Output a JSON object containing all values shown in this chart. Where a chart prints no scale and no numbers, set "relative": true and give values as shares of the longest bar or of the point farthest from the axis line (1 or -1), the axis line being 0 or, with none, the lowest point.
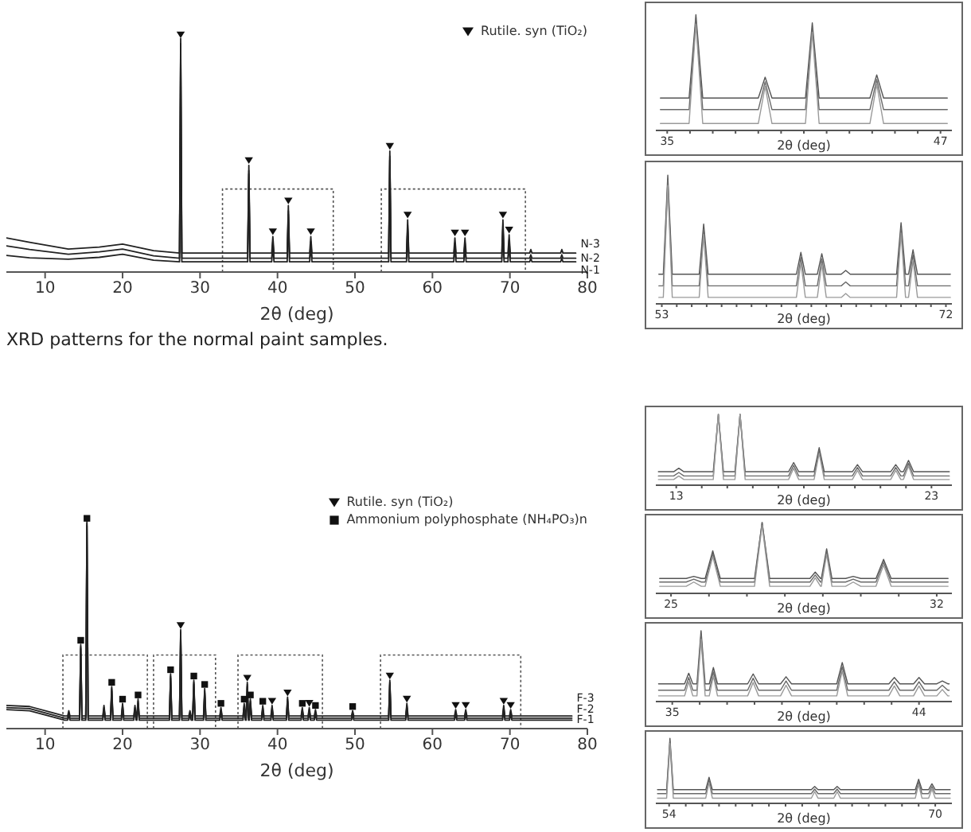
{
  "chart_data": [
    {
      "type": "line",
      "relative": true,
      "xlabel": "2θ (deg)",
      "xlim": [
        5,
        80
      ],
      "xticks": [
        10,
        20,
        30,
        40,
        50,
        60,
        70,
        80
      ],
      "legend": "top right",
      "annotations": [
        "XRD patterns for the normal paint samples."
      ],
      "x": [
        5,
        8,
        13,
        17,
        20,
        24,
        27.35,
        27.5,
        27.65,
        36.15,
        36.3,
        36.45,
        39.25,
        39.4,
        39.55,
        41.25,
        41.4,
        41.55,
        44.15,
        44.3,
        44.45,
        54.35,
        54.5,
        54.65,
        56.65,
        56.8,
        56.95,
        62.75,
        62.9,
        63.05,
        64.05,
        64.2,
        64.35,
        68.95,
        69.1,
        69.25,
        69.75,
        69.9,
        70.05,
        72.55,
        72.7,
        72.85,
        76.55,
        76.7,
        76.85,
        78.5
      ],
      "series": [
        {
          "name": "N-3",
          "color": "#222222",
          "values": [
            0.144,
            0.125,
            0.097,
            0.105,
            0.118,
            0.09,
            0.08,
            0.985,
            0.08,
            0.08,
            0.45,
            0.08,
            0.08,
            0.15,
            0.08,
            0.08,
            0.28,
            0.08,
            0.08,
            0.15,
            0.08,
            0.08,
            0.51,
            0.08,
            0.08,
            0.22,
            0.08,
            0.08,
            0.144,
            0.08,
            0.08,
            0.144,
            0.08,
            0.08,
            0.22,
            0.08,
            0.08,
            0.157,
            0.08,
            0.08,
            0.095,
            0.08,
            0.08,
            0.095,
            0.08,
            0.08
          ]
        },
        {
          "name": "N-2",
          "color": "#222222",
          "values": [
            0.11,
            0.095,
            0.075,
            0.085,
            0.097,
            0.068,
            0.058,
            0.963,
            0.058,
            0.058,
            0.428,
            0.058,
            0.058,
            0.128,
            0.058,
            0.058,
            0.258,
            0.058,
            0.058,
            0.128,
            0.058,
            0.058,
            0.488,
            0.058,
            0.058,
            0.198,
            0.058,
            0.058,
            0.122,
            0.058,
            0.058,
            0.122,
            0.058,
            0.058,
            0.198,
            0.058,
            0.058,
            0.135,
            0.058,
            0.058,
            0.073,
            0.058,
            0.058,
            0.073,
            0.058,
            0.058
          ]
        },
        {
          "name": "N-1",
          "color": "#222222",
          "values": [
            0.07,
            0.06,
            0.054,
            0.062,
            0.075,
            0.05,
            0.043,
            0.948,
            0.043,
            0.043,
            0.413,
            0.043,
            0.043,
            0.113,
            0.043,
            0.043,
            0.243,
            0.043,
            0.043,
            0.113,
            0.043,
            0.043,
            0.473,
            0.043,
            0.043,
            0.183,
            0.043,
            0.043,
            0.107,
            0.043,
            0.043,
            0.107,
            0.043,
            0.043,
            0.183,
            0.043,
            0.043,
            0.12,
            0.043,
            0.043,
            0.058,
            0.043,
            0.043,
            0.058,
            0.043,
            0.043
          ]
        },
        {
          "type": "scatter",
          "name": "Rutile. syn (TiO₂)",
          "color": "#111111",
          "marker": "triangle",
          "x": [
            27.5,
            36.3,
            39.4,
            41.4,
            44.3,
            54.5,
            56.8,
            62.9,
            64.2,
            69.1,
            69.9
          ],
          "values": [
            1.0,
            0.47,
            0.17,
            0.3,
            0.17,
            0.53,
            0.24,
            0.165,
            0.165,
            0.24,
            0.177
          ]
        }
      ]
    },
    {
      "type": "line",
      "relative": true,
      "xlabel": "2θ (deg)",
      "xlim": [
        34.5,
        47.5
      ],
      "xticks": [
        35,
        {
          "value": 36,
          "label": null
        },
        {
          "value": 37,
          "label": null
        },
        {
          "value": 38,
          "label": null
        },
        {
          "value": 39,
          "label": null
        },
        {
          "value": 40,
          "label": null
        },
        {
          "value": 41,
          "label": null
        },
        {
          "value": 42,
          "label": null
        },
        {
          "value": 43,
          "label": null
        },
        {
          "value": 44,
          "label": null
        },
        {
          "value": 45,
          "label": null
        },
        {
          "value": 46,
          "label": null
        },
        47
      ],
      "x": [
        34.7,
        35.96,
        36.26,
        36.56,
        39.0,
        39.3,
        39.6,
        41.07,
        41.37,
        41.67,
        43.9,
        44.2,
        44.5,
        47.3
      ],
      "series": [
        {
          "color": "#555555",
          "values": [
            0.28,
            0.28,
            1.0,
            0.28,
            0.28,
            0.46,
            0.28,
            0.28,
            0.93,
            0.28,
            0.28,
            0.48,
            0.28,
            0.28
          ]
        },
        {
          "color": "#6a6a6a",
          "values": [
            0.18,
            0.18,
            0.96,
            0.18,
            0.18,
            0.42,
            0.18,
            0.18,
            0.89,
            0.18,
            0.18,
            0.44,
            0.18,
            0.18
          ]
        },
        {
          "color": "#9a9a9a",
          "values": [
            0.06,
            0.06,
            0.92,
            0.06,
            0.06,
            0.38,
            0.06,
            0.06,
            0.85,
            0.06,
            0.06,
            0.4,
            0.06,
            0.06
          ]
        }
      ]
    },
    {
      "type": "line",
      "relative": true,
      "xlabel": "2θ (deg)",
      "xlim": [
        52.6,
        72.4
      ],
      "xticks": [
        53,
        {
          "value": 54,
          "label": null
        },
        {
          "value": 55,
          "label": null
        },
        {
          "value": 56,
          "label": null
        },
        {
          "value": 57,
          "label": null
        },
        {
          "value": 58,
          "label": null
        },
        {
          "value": 59,
          "label": null
        },
        {
          "value": 60,
          "label": null
        },
        {
          "value": 61,
          "label": null
        },
        {
          "value": 62,
          "label": null
        },
        {
          "value": 63,
          "label": null
        },
        {
          "value": 64,
          "label": null
        },
        {
          "value": 65,
          "label": null
        },
        {
          "value": 66,
          "label": null
        },
        {
          "value": 67,
          "label": null
        },
        {
          "value": 68,
          "label": null
        },
        {
          "value": 69,
          "label": null
        },
        {
          "value": 70,
          "label": null
        },
        {
          "value": 71,
          "label": null
        },
        72
      ],
      "x": [
        52.8,
        53.1,
        53.4,
        53.7,
        55.5,
        55.8,
        56.1,
        62.0,
        62.3,
        62.6,
        63.4,
        63.7,
        64.0,
        65.0,
        65.3,
        65.6,
        68.7,
        69.0,
        69.3,
        69.5,
        69.8,
        70.1,
        72.3
      ],
      "series": [
        {
          "color": "#555555",
          "values": [
            0.23,
            0.23,
            1.0,
            0.23,
            0.23,
            0.62,
            0.23,
            0.23,
            0.4,
            0.23,
            0.23,
            0.39,
            0.23,
            0.23,
            0.26,
            0.23,
            0.23,
            0.63,
            0.23,
            0.23,
            0.42,
            0.23,
            0.23
          ]
        },
        {
          "color": "#6a6a6a",
          "values": [
            0.14,
            0.14,
            0.96,
            0.14,
            0.14,
            0.58,
            0.14,
            0.14,
            0.36,
            0.14,
            0.14,
            0.35,
            0.14,
            0.14,
            0.17,
            0.14,
            0.14,
            0.59,
            0.14,
            0.14,
            0.38,
            0.14,
            0.14
          ]
        },
        {
          "color": "#9a9a9a",
          "values": [
            0.05,
            0.05,
            0.92,
            0.05,
            0.05,
            0.54,
            0.05,
            0.05,
            0.32,
            0.05,
            0.05,
            0.31,
            0.05,
            0.05,
            0.08,
            0.05,
            0.05,
            0.55,
            0.05,
            0.05,
            0.34,
            0.05,
            0.05
          ]
        }
      ]
    },
    {
      "type": "line",
      "relative": true,
      "xlabel": "2θ (deg)",
      "xlim": [
        5,
        80
      ],
      "xticks": [
        10,
        20,
        30,
        40,
        50,
        60,
        70,
        80
      ],
      "legend": "top right",
      "x": [
        5,
        8,
        11,
        12.5,
        12.91,
        13.06,
        13.21,
        14.45,
        14.6,
        14.75,
        15.25,
        15.4,
        15.55,
        17.45,
        17.6,
        17.75,
        18.45,
        18.6,
        18.75,
        19.85,
        20.0,
        20.15,
        21.45,
        21.6,
        21.75,
        21.85,
        22.0,
        22.15,
        26.05,
        26.2,
        26.35,
        27.35,
        27.5,
        27.65,
        28.55,
        28.7,
        28.85,
        29.05,
        29.2,
        29.35,
        30.45,
        30.6,
        30.75,
        32.55,
        32.7,
        32.85,
        35.55,
        35.7,
        35.85,
        35.95,
        36.1,
        36.25,
        36.35,
        36.5,
        36.65,
        37.95,
        38.1,
        38.25,
        39.15,
        39.3,
        39.45,
        41.15,
        41.3,
        41.45,
        43.05,
        43.2,
        43.35,
        43.95,
        44.1,
        44.25,
        44.75,
        44.9,
        45.05,
        49.55,
        49.7,
        49.85,
        54.35,
        54.5,
        54.65,
        56.55,
        56.7,
        56.85,
        62.85,
        63.0,
        63.15,
        64.15,
        64.3,
        64.45,
        69.05,
        69.2,
        69.35,
        69.95,
        70.1,
        70.25,
        78
      ],
      "series": [
        {
          "name": "F-3",
          "color": "#222222",
          "values": [
            0.11,
            0.105,
            0.075,
            0.06,
            0.06,
            0.085,
            0.06,
            0.06,
            0.4,
            0.06,
            0.06,
            0.985,
            0.06,
            0.06,
            0.11,
            0.06,
            0.06,
            0.2,
            0.06,
            0.06,
            0.12,
            0.06,
            0.06,
            0.11,
            0.06,
            0.06,
            0.14,
            0.06,
            0.06,
            0.26,
            0.06,
            0.06,
            0.47,
            0.06,
            0.06,
            0.085,
            0.06,
            0.06,
            0.23,
            0.06,
            0.06,
            0.19,
            0.06,
            0.06,
            0.1,
            0.06,
            0.06,
            0.12,
            0.06,
            0.06,
            0.22,
            0.06,
            0.06,
            0.14,
            0.06,
            0.06,
            0.11,
            0.06,
            0.06,
            0.11,
            0.06,
            0.06,
            0.15,
            0.06,
            0.06,
            0.1,
            0.06,
            0.06,
            0.1,
            0.06,
            0.06,
            0.09,
            0.06,
            0.06,
            0.085,
            0.06,
            0.06,
            0.23,
            0.06,
            0.06,
            0.12,
            0.06,
            0.06,
            0.09,
            0.06,
            0.06,
            0.09,
            0.06,
            0.06,
            0.11,
            0.06,
            0.06,
            0.09,
            0.06,
            0.06
          ]
        },
        {
          "name": "F-2",
          "color": "#222222",
          "values": [
            0.1,
            0.095,
            0.065,
            0.05,
            0.05,
            0.075,
            0.05,
            0.05,
            0.39,
            0.05,
            0.05,
            0.975,
            0.05,
            0.05,
            0.1,
            0.05,
            0.05,
            0.19,
            0.05,
            0.05,
            0.11,
            0.05,
            0.05,
            0.1,
            0.05,
            0.05,
            0.13,
            0.05,
            0.05,
            0.25,
            0.05,
            0.05,
            0.46,
            0.05,
            0.05,
            0.075,
            0.05,
            0.05,
            0.22,
            0.05,
            0.05,
            0.18,
            0.05,
            0.05,
            0.09,
            0.05,
            0.05,
            0.11,
            0.05,
            0.05,
            0.21,
            0.05,
            0.05,
            0.13,
            0.05,
            0.05,
            0.1,
            0.05,
            0.05,
            0.1,
            0.05,
            0.05,
            0.14,
            0.05,
            0.05,
            0.09,
            0.05,
            0.05,
            0.09,
            0.05,
            0.05,
            0.08,
            0.05,
            0.05,
            0.075,
            0.05,
            0.05,
            0.22,
            0.05,
            0.05,
            0.11,
            0.05,
            0.05,
            0.08,
            0.05,
            0.05,
            0.08,
            0.05,
            0.05,
            0.1,
            0.05,
            0.05,
            0.08,
            0.05,
            0.05
          ]
        },
        {
          "name": "F-1",
          "color": "#222222",
          "values": [
            0.09,
            0.085,
            0.055,
            0.04,
            0.04,
            0.065,
            0.04,
            0.04,
            0.38,
            0.04,
            0.04,
            0.965,
            0.04,
            0.04,
            0.09,
            0.04,
            0.04,
            0.18,
            0.04,
            0.04,
            0.1,
            0.04,
            0.04,
            0.09,
            0.04,
            0.04,
            0.12,
            0.04,
            0.04,
            0.24,
            0.04,
            0.04,
            0.45,
            0.04,
            0.04,
            0.065,
            0.04,
            0.04,
            0.21,
            0.04,
            0.04,
            0.17,
            0.04,
            0.04,
            0.08,
            0.04,
            0.04,
            0.1,
            0.04,
            0.04,
            0.2,
            0.04,
            0.04,
            0.12,
            0.04,
            0.04,
            0.09,
            0.04,
            0.04,
            0.09,
            0.04,
            0.04,
            0.13,
            0.04,
            0.04,
            0.08,
            0.04,
            0.04,
            0.08,
            0.04,
            0.04,
            0.07,
            0.04,
            0.04,
            0.065,
            0.04,
            0.04,
            0.21,
            0.04,
            0.04,
            0.1,
            0.04,
            0.04,
            0.07,
            0.04,
            0.04,
            0.07,
            0.04,
            0.04,
            0.09,
            0.04,
            0.04,
            0.07,
            0.04,
            0.04
          ]
        },
        {
          "type": "scatter",
          "name": "Rutile. syn (TiO₂)",
          "color": "#111111",
          "marker": "triangle",
          "x": [
            27.5,
            36.1,
            39.3,
            41.3,
            44.1,
            54.5,
            56.7,
            63.0,
            64.3,
            69.2,
            70.1
          ],
          "values": [
            0.49,
            0.24,
            0.13,
            0.17,
            0.12,
            0.25,
            0.14,
            0.11,
            0.11,
            0.13,
            0.11
          ]
        },
        {
          "type": "scatter",
          "name": "Ammonium polyphosphate (NH₄PO₃)n",
          "color": "#111111",
          "marker": "square",
          "x": [
            14.6,
            15.4,
            18.6,
            20.0,
            22.0,
            26.2,
            29.2,
            30.6,
            32.7,
            35.7,
            36.5,
            38.1,
            43.2,
            44.9,
            49.7
          ],
          "values": [
            0.42,
            1.0,
            0.22,
            0.14,
            0.16,
            0.28,
            0.25,
            0.21,
            0.12,
            0.14,
            0.16,
            0.13,
            0.12,
            0.11,
            0.105
          ]
        }
      ]
    },
    {
      "type": "line",
      "relative": true,
      "xlabel": "2θ (deg)",
      "xlim": [
        12.2,
        23.8
      ],
      "xticks": [
        13,
        {
          "value": 14,
          "label": null
        },
        {
          "value": 15,
          "label": null
        },
        {
          "value": 16,
          "label": null
        },
        {
          "value": 17,
          "label": null
        },
        {
          "value": 18,
          "label": null
        },
        {
          "value": 19,
          "label": null
        },
        {
          "value": 20,
          "label": null
        },
        {
          "value": 21,
          "label": null
        },
        {
          "value": 22,
          "label": null
        },
        23
      ],
      "x": [
        12.3,
        12.9,
        13.1,
        13.3,
        14.45,
        14.65,
        14.85,
        15.3,
        15.5,
        15.7,
        17.4,
        17.6,
        17.8,
        18.4,
        18.6,
        18.8,
        19.9,
        20.1,
        20.3,
        21.4,
        21.6,
        21.8,
        21.9,
        22.1,
        22.3,
        23.7
      ],
      "series": [
        {
          "color": "#555555",
          "values": [
            0.19,
            0.19,
            0.24,
            0.19,
            0.19,
            1.0,
            0.19,
            0.19,
            1.0,
            0.19,
            0.19,
            0.32,
            0.19,
            0.19,
            0.53,
            0.19,
            0.19,
            0.29,
            0.19,
            0.19,
            0.29,
            0.19,
            0.19,
            0.35,
            0.19,
            0.19
          ]
        },
        {
          "color": "#6a6a6a",
          "values": [
            0.13,
            0.13,
            0.18,
            0.13,
            0.13,
            1.0,
            0.13,
            0.13,
            1.0,
            0.13,
            0.13,
            0.28,
            0.13,
            0.13,
            0.49,
            0.13,
            0.13,
            0.25,
            0.13,
            0.13,
            0.25,
            0.13,
            0.13,
            0.31,
            0.13,
            0.13
          ]
        },
        {
          "color": "#9a9a9a",
          "values": [
            0.08,
            0.08,
            0.13,
            0.08,
            0.08,
            1.0,
            0.08,
            0.08,
            1.0,
            0.08,
            0.08,
            0.24,
            0.08,
            0.08,
            0.45,
            0.08,
            0.08,
            0.21,
            0.08,
            0.08,
            0.21,
            0.08,
            0.08,
            0.27,
            0.08,
            0.08
          ]
        }
      ]
    },
    {
      "type": "line",
      "relative": true,
      "xlabel": "2θ (deg)",
      "xlim": [
        24.6,
        32.4
      ],
      "xticks": [
        25,
        {
          "value": 26,
          "label": null
        },
        {
          "value": 27,
          "label": null
        },
        {
          "value": 28,
          "label": null
        },
        {
          "value": 29,
          "label": null
        },
        {
          "value": 30,
          "label": null
        },
        {
          "value": 31,
          "label": null
        },
        32
      ],
      "x": [
        24.7,
        25.4,
        25.6,
        25.8,
        25.9,
        26.1,
        26.3,
        27.2,
        27.4,
        27.6,
        28.66,
        28.8,
        28.94,
        28.96,
        29.1,
        29.24,
        29.6,
        29.8,
        30.0,
        30.4,
        30.6,
        30.8,
        32.3
      ],
      "series": [
        {
          "color": "#555555",
          "values": [
            0.21,
            0.21,
            0.24,
            0.21,
            0.21,
            0.6,
            0.21,
            0.21,
            1.0,
            0.21,
            0.21,
            0.3,
            0.21,
            0.21,
            0.63,
            0.21,
            0.21,
            0.24,
            0.21,
            0.21,
            0.48,
            0.21,
            0.21
          ]
        },
        {
          "color": "#6a6a6a",
          "values": [
            0.16,
            0.16,
            0.2,
            0.16,
            0.16,
            0.56,
            0.16,
            0.16,
            1.0,
            0.16,
            0.16,
            0.26,
            0.16,
            0.16,
            0.59,
            0.16,
            0.16,
            0.2,
            0.16,
            0.16,
            0.44,
            0.16,
            0.16
          ]
        },
        {
          "color": "#9a9a9a",
          "values": [
            0.1,
            0.1,
            0.16,
            0.1,
            0.1,
            0.52,
            0.1,
            0.1,
            0.96,
            0.1,
            0.1,
            0.22,
            0.1,
            0.1,
            0.55,
            0.1,
            0.1,
            0.16,
            0.1,
            0.1,
            0.4,
            0.1,
            0.1
          ]
        }
      ]
    },
    {
      "type": "line",
      "relative": true,
      "xlabel": "2θ (deg)",
      "xlim": [
        34.4,
        45.2
      ],
      "xticks": [
        35,
        {
          "value": 36,
          "label": null
        },
        {
          "value": 37,
          "label": null
        },
        {
          "value": 38,
          "label": null
        },
        {
          "value": 39,
          "label": null
        },
        {
          "value": 40,
          "label": null
        },
        {
          "value": 41,
          "label": null
        },
        {
          "value": 42,
          "label": null
        },
        {
          "value": 43,
          "label": null
        },
        44
      ],
      "x": [
        34.5,
        35.45,
        35.6,
        35.75,
        35.9,
        36.05,
        36.2,
        36.35,
        36.5,
        36.65,
        37.75,
        37.95,
        38.15,
        38.95,
        39.15,
        39.35,
        41.0,
        41.2,
        41.4,
        42.9,
        43.1,
        43.3,
        43.8,
        44.0,
        44.2,
        44.65,
        44.85,
        45.05,
        45.1
      ],
      "series": [
        {
          "color": "#555555",
          "values": [
            0.25,
            0.25,
            0.4,
            0.25,
            0.25,
            1.0,
            0.25,
            0.25,
            0.48,
            0.25,
            0.25,
            0.39,
            0.25,
            0.25,
            0.35,
            0.25,
            0.25,
            0.55,
            0.25,
            0.25,
            0.34,
            0.25,
            0.25,
            0.34,
            0.25,
            0.25,
            0.29,
            0.25,
            0.25
          ]
        },
        {
          "color": "#6a6a6a",
          "values": [
            0.16,
            0.16,
            0.34,
            0.16,
            0.16,
            0.94,
            0.16,
            0.16,
            0.42,
            0.16,
            0.16,
            0.33,
            0.16,
            0.16,
            0.29,
            0.16,
            0.16,
            0.49,
            0.16,
            0.16,
            0.28,
            0.16,
            0.16,
            0.28,
            0.16,
            0.16,
            0.23,
            0.16,
            0.16
          ]
        },
        {
          "color": "#9a9a9a",
          "values": [
            0.08,
            0.08,
            0.28,
            0.08,
            0.08,
            0.88,
            0.08,
            0.08,
            0.36,
            0.08,
            0.08,
            0.27,
            0.08,
            0.08,
            0.23,
            0.08,
            0.08,
            0.43,
            0.08,
            0.08,
            0.22,
            0.08,
            0.08,
            0.22,
            0.08,
            0.08,
            0.17,
            0.08,
            0.08
          ]
        }
      ]
    },
    {
      "type": "line",
      "relative": true,
      "xlabel": "2θ (deg)",
      "xlim": [
        53.2,
        71
      ],
      "xticks": [
        54,
        {
          "value": 55,
          "label": null
        },
        {
          "value": 56,
          "label": null
        },
        {
          "value": 57,
          "label": null
        },
        {
          "value": 58,
          "label": null
        },
        {
          "value": 59,
          "label": null
        },
        {
          "value": 60,
          "label": null
        },
        {
          "value": 61,
          "label": null
        },
        {
          "value": 62,
          "label": null
        },
        {
          "value": 63,
          "label": null
        },
        {
          "value": 64,
          "label": null
        },
        {
          "value": 65,
          "label": null
        },
        {
          "value": 66,
          "label": null
        },
        {
          "value": 67,
          "label": null
        },
        {
          "value": 68,
          "label": null
        },
        {
          "value": 69,
          "label": null
        },
        70
      ],
      "x": [
        53.3,
        53.85,
        54.05,
        54.25,
        56.2,
        56.4,
        56.6,
        62.55,
        62.75,
        62.95,
        63.9,
        64.1,
        64.3,
        68.8,
        69.0,
        69.2,
        69.6,
        69.8,
        70.0,
        70.9
      ],
      "series": [
        {
          "color": "#555555",
          "values": [
            0.21,
            0.21,
            1.0,
            0.21,
            0.21,
            0.4,
            0.21,
            0.21,
            0.26,
            0.21,
            0.21,
            0.26,
            0.21,
            0.21,
            0.37,
            0.21,
            0.21,
            0.3,
            0.21,
            0.21
          ]
        },
        {
          "color": "#6a6a6a",
          "values": [
            0.15,
            0.15,
            0.96,
            0.15,
            0.15,
            0.36,
            0.15,
            0.15,
            0.22,
            0.15,
            0.15,
            0.22,
            0.15,
            0.15,
            0.33,
            0.15,
            0.15,
            0.26,
            0.15,
            0.15
          ]
        },
        {
          "color": "#9a9a9a",
          "values": [
            0.08,
            0.08,
            0.92,
            0.08,
            0.08,
            0.32,
            0.08,
            0.08,
            0.18,
            0.08,
            0.08,
            0.18,
            0.08,
            0.08,
            0.29,
            0.08,
            0.08,
            0.22,
            0.08,
            0.08
          ]
        }
      ]
    }
  ]
}
